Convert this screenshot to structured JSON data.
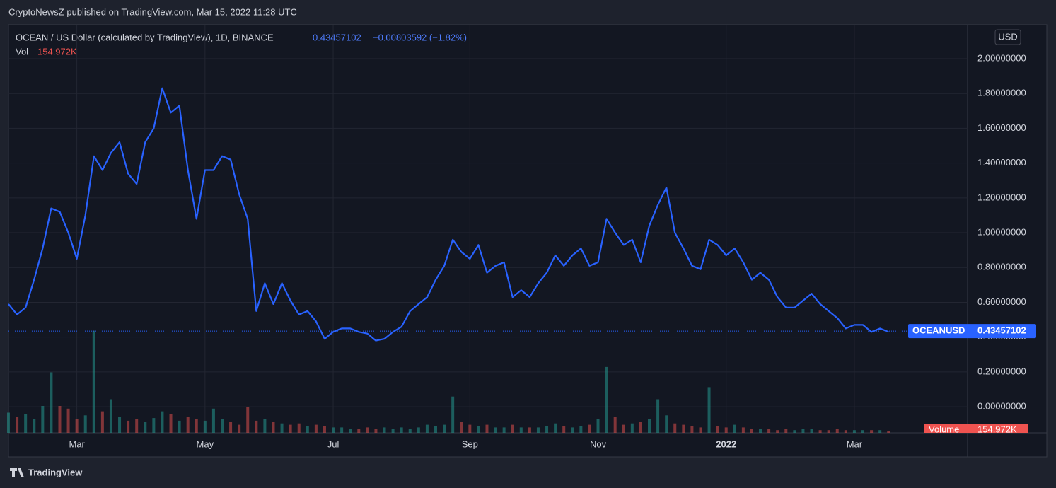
{
  "header": "CryptoNewsZ published on TradingView.com, Mar 15, 2022 11:28 UTC",
  "footer": "TradingView",
  "chart_data": {
    "type": "line",
    "title": "OCEAN / US Dollar (calculated by TradingView), 1D, BINANCE",
    "last_value": 0.43457102,
    "change_label": "−0.00803592 (−1.82%)",
    "currency": "USD",
    "grid": true,
    "categories": [
      null,
      null,
      null,
      null,
      null,
      null,
      null,
      null,
      "Mar",
      null,
      null,
      null,
      null,
      null,
      null,
      null,
      null,
      null,
      null,
      null,
      null,
      null,
      null,
      "May",
      null,
      null,
      null,
      null,
      null,
      null,
      null,
      null,
      null,
      null,
      null,
      null,
      null,
      null,
      "Jul",
      null,
      null,
      null,
      null,
      null,
      null,
      null,
      null,
      null,
      null,
      null,
      null,
      null,
      null,
      null,
      "Sep",
      null,
      null,
      null,
      null,
      null,
      null,
      null,
      null,
      null,
      null,
      null,
      null,
      null,
      null,
      "Nov",
      null,
      null,
      null,
      null,
      null,
      null,
      null,
      null,
      null,
      null,
      null,
      null,
      null,
      null,
      "2022",
      null,
      null,
      null,
      null,
      null,
      null,
      null,
      null,
      null,
      null,
      null,
      null,
      null,
      null,
      "Mar",
      null,
      null,
      null,
      null
    ],
    "series": [
      {
        "name": "OCEANUSD",
        "color": "#2962ff",
        "values": [
          0.59,
          0.53,
          0.57,
          0.73,
          0.91,
          1.14,
          1.12,
          1.0,
          0.85,
          1.1,
          1.44,
          1.36,
          1.46,
          1.52,
          1.34,
          1.28,
          1.52,
          1.6,
          1.83,
          1.69,
          1.73,
          1.36,
          1.08,
          1.36,
          1.36,
          1.44,
          1.42,
          1.22,
          1.08,
          0.55,
          0.71,
          0.59,
          0.71,
          0.61,
          0.53,
          0.55,
          0.49,
          0.39,
          0.43,
          0.45,
          0.45,
          0.43,
          0.42,
          0.38,
          0.39,
          0.43,
          0.46,
          0.55,
          0.59,
          0.63,
          0.73,
          0.81,
          0.96,
          0.89,
          0.85,
          0.93,
          0.77,
          0.81,
          0.83,
          0.63,
          0.67,
          0.63,
          0.71,
          0.77,
          0.87,
          0.81,
          0.87,
          0.91,
          0.81,
          0.83,
          1.08,
          1.0,
          0.93,
          0.96,
          0.83,
          1.04,
          1.16,
          1.26,
          1.0,
          0.91,
          0.81,
          0.79,
          0.96,
          0.93,
          0.87,
          0.91,
          0.83,
          0.73,
          0.77,
          0.73,
          0.63,
          0.57,
          0.57,
          0.61,
          0.65,
          0.59,
          0.55,
          0.51,
          0.45,
          0.47,
          0.47,
          0.43,
          0.45,
          0.43
        ]
      }
    ],
    "ylim": [
      -0.15,
      2.195
    ],
    "yticks": [
      {
        "value": 0,
        "label": "0.00000000"
      },
      {
        "value": 0.2,
        "label": "0.20000000"
      },
      {
        "value": 0.4,
        "label": "0.40000000"
      },
      {
        "value": 0.6,
        "label": "0.60000000"
      },
      {
        "value": 0.8,
        "label": "0.80000000"
      },
      {
        "value": 1.0,
        "label": "1.00000000"
      },
      {
        "value": 1.2,
        "label": "1.20000000"
      },
      {
        "value": 1.4,
        "label": "1.40000000"
      },
      {
        "value": 1.6,
        "label": "1.60000000"
      },
      {
        "value": 1.8,
        "label": "1.80000000"
      },
      {
        "value": 2.0,
        "label": "2.00000000"
      }
    ],
    "volume": {
      "label": "Vol",
      "title": "Volume",
      "last_label": "154.972K",
      "up_color": "#26a69a",
      "down_color": "#ef5350",
      "ylim": [
        0,
        8000
      ],
      "values": [
        1500,
        1200,
        1400,
        1000,
        2000,
        4500,
        2000,
        1800,
        1000,
        1300,
        7600,
        1600,
        2500,
        1200,
        900,
        1000,
        800,
        1100,
        1600,
        1400,
        900,
        1200,
        1000,
        900,
        1800,
        1000,
        800,
        600,
        1900,
        900,
        1000,
        800,
        700,
        600,
        700,
        500,
        600,
        500,
        400,
        400,
        300,
        300,
        400,
        300,
        400,
        300,
        400,
        300,
        400,
        600,
        500,
        600,
        2700,
        800,
        600,
        500,
        600,
        400,
        400,
        600,
        400,
        400,
        400,
        500,
        700,
        500,
        400,
        500,
        600,
        1000,
        4900,
        1200,
        600,
        700,
        800,
        1000,
        2500,
        1300,
        700,
        600,
        500,
        400,
        3400,
        500,
        400,
        600,
        400,
        300,
        300,
        300,
        200,
        300,
        200,
        300,
        300,
        200,
        200,
        300,
        200,
        200,
        200,
        200,
        200,
        154.972
      ]
    }
  }
}
